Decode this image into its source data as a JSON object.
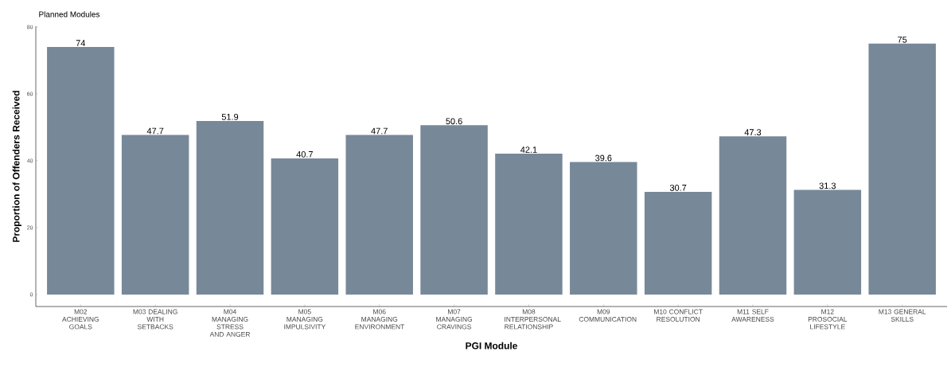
{
  "chart_data": {
    "type": "bar",
    "title": "Planned Modules",
    "xlabel": "PGI Module",
    "ylabel": "Proportion of Offenders Received",
    "categories": [
      "M02 ACHIEVING GOALS",
      "M03 DEALING WITH SETBACKS",
      "M04 MANAGING STRESS AND ANGER",
      "M05 MANAGING IMPULSIVITY",
      "M06 MANAGING ENVIRONMENT",
      "M07 MANAGING CRAVINGS",
      "M08 INTERPERSONAL RELATIONSHIP",
      "M09 COMMUNICATION",
      "M10 CONFLICT RESOLUTION",
      "M11 SELF AWARENESS",
      "M12 PROSOCIAL LIFESTYLE",
      "M13 GENERAL SKILLS"
    ],
    "values": [
      74,
      47.7,
      51.9,
      40.7,
      47.7,
      50.6,
      42.1,
      39.6,
      30.7,
      47.3,
      31.3,
      75
    ],
    "color": "#778899",
    "data_labels": true,
    "ylim": [
      -3.6,
      80.2
    ],
    "yticks": [
      0,
      20,
      40,
      60,
      80
    ],
    "grid": false
  }
}
